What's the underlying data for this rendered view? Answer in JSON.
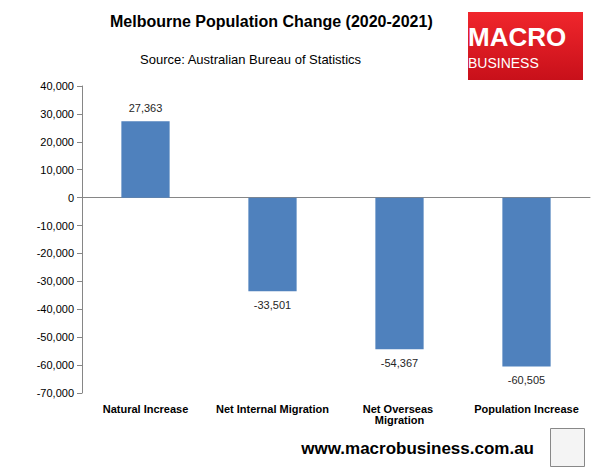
{
  "chart_data": {
    "type": "bar",
    "title": "Melbourne Population Change (2020-2021)",
    "subtitle": "Source: Australian Bureau of Statistics",
    "annotations": [
      "MACRO",
      "BUSINESS",
      "www.macrobusiness.com.au"
    ],
    "categories": [
      "Natural Increase",
      "Net Internal Migration",
      "Net Overseas Migration",
      "Population Increase"
    ],
    "values": [
      27363,
      -33501,
      -54367,
      -60505
    ],
    "value_labels": [
      "27,363",
      "-33,501",
      "-54,367",
      "-60,505"
    ],
    "color": "#4f81bd",
    "ylim": [
      -70000,
      40000
    ],
    "yticks": [
      {
        "value": -70000,
        "label": "-70,000"
      },
      {
        "value": -60000,
        "label": "-60,000"
      },
      {
        "value": -50000,
        "label": "-50,000"
      },
      {
        "value": -40000,
        "label": "-40,000"
      },
      {
        "value": -30000,
        "label": "-30,000"
      },
      {
        "value": -20000,
        "label": "-20,000"
      },
      {
        "value": -10000,
        "label": "-10,000"
      },
      0,
      {
        "value": 10000,
        "label": "10,000"
      },
      {
        "value": 20000,
        "label": "20,000"
      },
      {
        "value": 30000,
        "label": "30,000"
      },
      {
        "value": 40000,
        "label": "40,000"
      }
    ],
    "grid": false,
    "data_labels": true
  }
}
